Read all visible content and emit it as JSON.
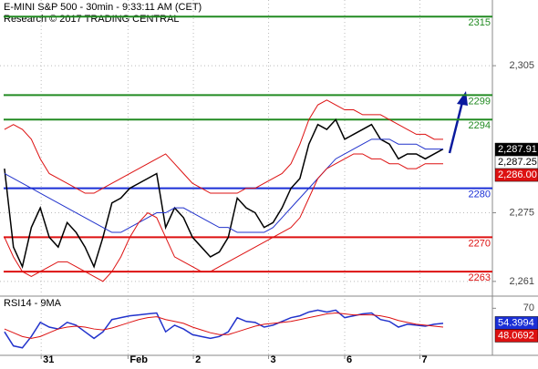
{
  "chart_data": {
    "type": "line",
    "title": "E-MINI S&P 500 - 30min - 9:33:11 AM (CET)",
    "subtitle": "Research © 2017 TRADING CENTRAL",
    "x": [
      0,
      1,
      2,
      3,
      4,
      5,
      6,
      7,
      8,
      9,
      10,
      11,
      12,
      13,
      14,
      15,
      16,
      17,
      18,
      19,
      20,
      21,
      22,
      23,
      24,
      25,
      26,
      27,
      28,
      29,
      30,
      31,
      32,
      33,
      34,
      35,
      36,
      37,
      38,
      39,
      40,
      41,
      42,
      43,
      44,
      45,
      46,
      47,
      48,
      49
    ],
    "xlim": [
      -0.5,
      54.5
    ],
    "xticks": [
      {
        "value": 4.1,
        "label": "31"
      },
      {
        "value": 13.8,
        "label": "Feb"
      },
      {
        "value": 21.1,
        "label": "2"
      },
      {
        "value": 29.5,
        "label": "3"
      },
      {
        "value": 38,
        "label": "6"
      },
      {
        "value": 46.4,
        "label": "7"
      }
    ],
    "ylim": [
      2258,
      2318.4
    ],
    "yticks": [
      {
        "value": 2305,
        "label": "2,305"
      },
      {
        "value": 2275,
        "label": "2,275"
      },
      {
        "value": 2261,
        "label": "2,261"
      }
    ],
    "series": [
      {
        "color": "#000000",
        "values": [
          2284,
          2268,
          2264,
          2272,
          2276,
          2270,
          2268,
          2273,
          2271,
          2268,
          2264,
          2270,
          2277,
          2278,
          2280,
          2281,
          2282,
          2283,
          2272,
          2276,
          2274,
          2270,
          2268,
          2266,
          2267,
          2270,
          2278,
          2276,
          2275,
          2272,
          2273,
          2276,
          2280,
          2282,
          2289,
          2293,
          2292,
          2294,
          2290,
          2291,
          2292,
          2293,
          2290,
          2289,
          2286,
          2287,
          2287,
          2286,
          2287,
          2288
        ]
      },
      {
        "color": "#2233cc",
        "values": [
          2283,
          2282,
          2281,
          2280,
          2279,
          2278,
          2277,
          2276,
          2275,
          2274,
          2273,
          2272,
          2271,
          2271,
          2272,
          2273,
          2274,
          2275,
          2275,
          2276,
          2276,
          2275,
          2274,
          2273,
          2272,
          2272,
          2271,
          2271,
          2271,
          2271,
          2272,
          2274,
          2276,
          2278,
          2280,
          2282,
          2284,
          2286,
          2287,
          2288,
          2289,
          2290,
          2290,
          2290,
          2289,
          2289,
          2289,
          2288,
          2288,
          2288
        ]
      },
      {
        "color": "#dd1111",
        "values": [
          2292,
          2293,
          2292,
          2290,
          2286,
          2283,
          2282,
          2281,
          2280,
          2279,
          2279,
          2280,
          2281,
          2282,
          2283,
          2284,
          2285,
          2286,
          2287,
          2285,
          2283,
          2281,
          2280,
          2279,
          2279,
          2279,
          2279,
          2280,
          2280,
          2281,
          2282,
          2283,
          2285,
          2289,
          2294,
          2297,
          2298,
          2297,
          2296,
          2296,
          2295,
          2295,
          2295,
          2294,
          2293,
          2292,
          2291,
          2291,
          2290,
          2290
        ]
      },
      {
        "color": "#dd1111",
        "values": [
          2270,
          2266,
          2263,
          2262,
          2263,
          2264,
          2265,
          2265,
          2264,
          2263,
          2262,
          2261,
          2263,
          2266,
          2270,
          2273,
          2275,
          2274,
          2270,
          2266,
          2265,
          2264,
          2263,
          2263,
          2264,
          2265,
          2266,
          2267,
          2268,
          2269,
          2270,
          2271,
          2272,
          2274,
          2278,
          2282,
          2284,
          2285,
          2286,
          2287,
          2287,
          2286,
          2286,
          2285,
          2285,
          2284,
          2284,
          2285,
          2285,
          2285
        ]
      }
    ],
    "levels": [
      {
        "value": 2315,
        "color": "#228b22"
      },
      {
        "value": 2299,
        "color": "#228b22"
      },
      {
        "value": 2294,
        "color": "#228b22"
      },
      {
        "value": 2280,
        "color": "#1a2fd6"
      },
      {
        "value": 2270,
        "color": "#dd1111"
      },
      {
        "value": 2263,
        "color": "#dd1111"
      }
    ],
    "price_tags": [
      {
        "value": 2287.91,
        "label": "2,287.91",
        "color": "#000000"
      },
      {
        "value": 2287.25,
        "label": "2,287.25",
        "color": "#ffffff"
      },
      {
        "value": 2286.0,
        "label": "2,286.00",
        "color": "#dd1111"
      }
    ],
    "rsi": {
      "title": "RSI14 - 9MA",
      "ylim": [
        20,
        80
      ],
      "yticks": [
        70
      ],
      "series": [
        {
          "color": "#2233cc",
          "values": [
            45,
            30,
            28,
            40,
            55,
            50,
            48,
            55,
            52,
            45,
            38,
            45,
            58,
            60,
            62,
            63,
            64,
            65,
            45,
            52,
            48,
            42,
            40,
            38,
            40,
            45,
            60,
            56,
            55,
            50,
            52,
            56,
            60,
            62,
            66,
            68,
            66,
            68,
            60,
            62,
            64,
            65,
            58,
            56,
            50,
            53,
            52,
            51,
            53,
            54
          ]
        },
        {
          "color": "#dd1111",
          "values": [
            48,
            44,
            40,
            38,
            40,
            44,
            48,
            50,
            51,
            50,
            48,
            47,
            49,
            52,
            55,
            58,
            60,
            61,
            58,
            56,
            54,
            50,
            47,
            44,
            42,
            42,
            45,
            48,
            51,
            53,
            54,
            55,
            56,
            58,
            60,
            62,
            64,
            65,
            64,
            63,
            63,
            63,
            62,
            60,
            57,
            55,
            53,
            52,
            51,
            50
          ]
        }
      ],
      "tags": [
        {
          "value": 54.3994,
          "color": "#1a2fd6"
        },
        {
          "value": 48.0692,
          "color": "#dd1111"
        }
      ]
    }
  }
}
